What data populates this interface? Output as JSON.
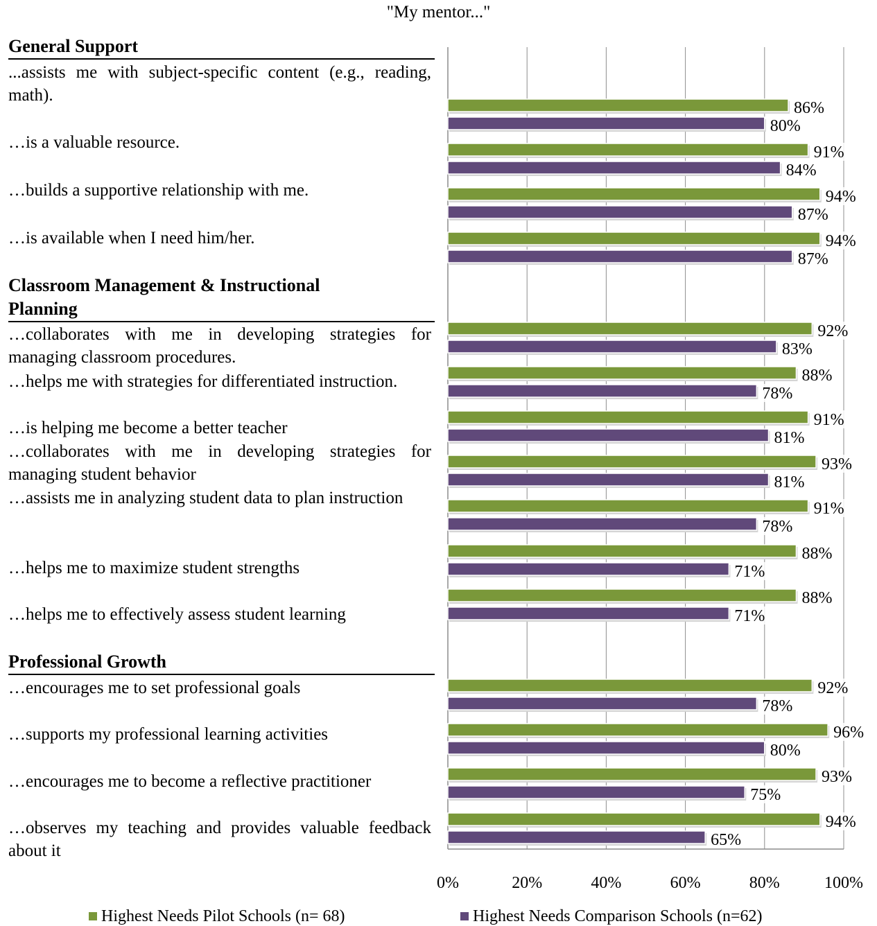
{
  "chart_data": {
    "type": "bar",
    "orientation": "horizontal",
    "title": "\"My mentor...\"",
    "xlim": [
      0,
      100
    ],
    "x_ticks": [
      "0%",
      "20%",
      "40%",
      "60%",
      "80%",
      "100%"
    ],
    "legend_position": "bottom",
    "series": [
      {
        "name": "Highest Needs Pilot Schools (n= 68)",
        "color": "#7A983A"
      },
      {
        "name": "Highest Needs Comparison Schools (n=62)",
        "color": "#60497A"
      }
    ],
    "sections": [
      {
        "title": "General Support",
        "items": [
          {
            "label": "...assists me with subject-specific content (e.g., reading, math).",
            "pilot": 86,
            "comparison": 80,
            "pilot_label": "86%",
            "comparison_label": "80%"
          },
          {
            "label": "…is a valuable resource.",
            "pilot": 91,
            "comparison": 84,
            "pilot_label": "91%",
            "comparison_label": "84%"
          },
          {
            "label": "…builds a supportive relationship with me.",
            "pilot": 94,
            "comparison": 87,
            "pilot_label": "94%",
            "comparison_label": "87%"
          },
          {
            "label": "…is available when I need him/her.",
            "pilot": 94,
            "comparison": 87,
            "pilot_label": "94%",
            "comparison_label": "87%"
          }
        ]
      },
      {
        "title": "Classroom Management & Instructional Planning",
        "items": [
          {
            "label": "…collaborates with me in developing strategies for managing classroom procedures.",
            "pilot": 92,
            "comparison": 83,
            "pilot_label": "92%",
            "comparison_label": "83%"
          },
          {
            "label": "…helps me with strategies for differentiated instruction.",
            "pilot": 88,
            "comparison": 78,
            "pilot_label": "88%",
            "comparison_label": "78%"
          },
          {
            "label": "…is helping me become a better teacher",
            "pilot": 91,
            "comparison": 81,
            "pilot_label": "91%",
            "comparison_label": "81%"
          },
          {
            "label": "…collaborates with me in developing strategies for managing student behavior",
            "pilot": 93,
            "comparison": 81,
            "pilot_label": "93%",
            "comparison_label": "81%"
          },
          {
            "label": "…assists me in analyzing student data to plan instruction",
            "pilot": 91,
            "comparison": 78,
            "pilot_label": "91%",
            "comparison_label": "78%"
          },
          {
            "label": "…helps me to maximize student strengths",
            "pilot": 88,
            "comparison": 71,
            "pilot_label": "88%",
            "comparison_label": "71%"
          },
          {
            "label": "…helps me to effectively assess student learning",
            "pilot": 88,
            "comparison": 71,
            "pilot_label": "88%",
            "comparison_label": "71%"
          }
        ]
      },
      {
        "title": "Professional Growth",
        "items": [
          {
            "label": "…encourages me to set professional goals",
            "pilot": 92,
            "comparison": 78,
            "pilot_label": "92%",
            "comparison_label": "78%"
          },
          {
            "label": "…supports my professional learning activities",
            "pilot": 96,
            "comparison": 80,
            "pilot_label": "96%",
            "comparison_label": "80%"
          },
          {
            "label": "…encourages me to become a reflective practitioner",
            "pilot": 93,
            "comparison": 75,
            "pilot_label": "93%",
            "comparison_label": "75%"
          },
          {
            "label": "…observes my teaching and provides valuable feedback about it",
            "pilot": 94,
            "comparison": 65,
            "pilot_label": "94%",
            "comparison_label": "65%"
          }
        ]
      }
    ]
  }
}
